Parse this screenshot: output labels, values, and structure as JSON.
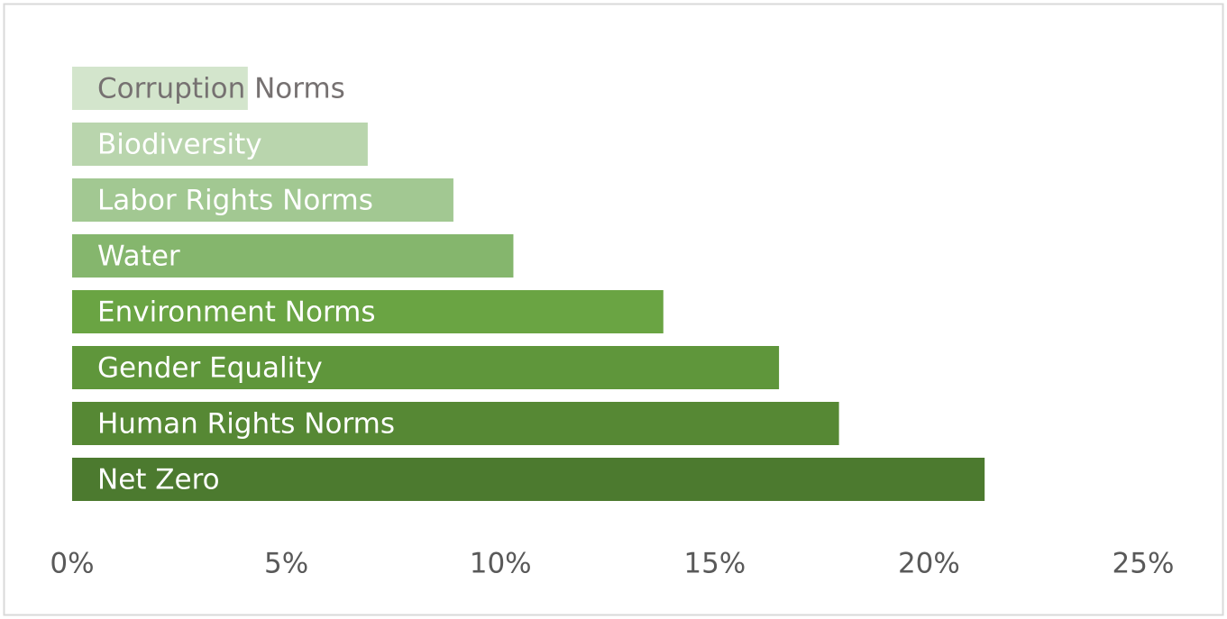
{
  "chart_data": {
    "type": "barh",
    "categories": [
      "Corruption Norms",
      "Biodiversity",
      "Labor Rights Norms",
      "Water",
      "Environment Norms",
      "Gender Equality",
      "Human Rights Norms",
      "Net Zero"
    ],
    "values": [
      4.1,
      6.9,
      8.9,
      10.3,
      13.8,
      16.5,
      17.9,
      21.3
    ],
    "colors": [
      "#d3e5cc",
      "#b9d5ad",
      "#a2c892",
      "#85b66d",
      "#6aa443",
      "#5f963b",
      "#568834",
      "#4c7a2f"
    ],
    "label_colors": [
      "#767171",
      "#ffffff",
      "#ffffff",
      "#ffffff",
      "#ffffff",
      "#ffffff",
      "#ffffff",
      "#ffffff"
    ],
    "xlim": [
      0,
      25
    ],
    "xticks": [
      {
        "value": 0,
        "label": "0%"
      },
      {
        "value": 5,
        "label": "5%"
      },
      {
        "value": 10,
        "label": "10%"
      },
      {
        "value": 15,
        "label": "15%"
      },
      {
        "value": 20,
        "label": "20%"
      },
      {
        "value": 25,
        "label": "25%"
      }
    ],
    "grid": false
  }
}
